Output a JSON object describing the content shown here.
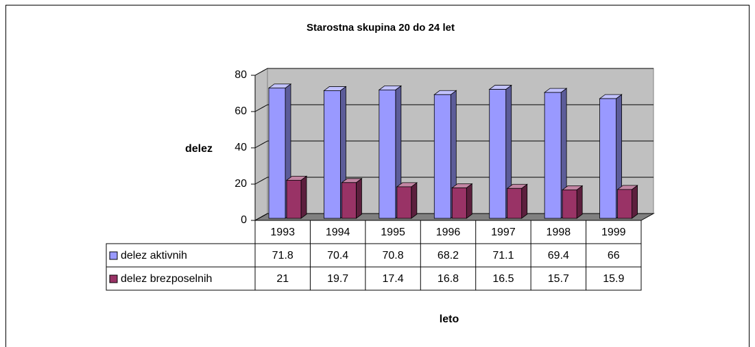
{
  "chart_data": {
    "type": "bar3d",
    "title": "Starostna skupina 20 do 24 let",
    "x_label": "leto",
    "y_label": "delez",
    "categories": [
      "1993",
      "1994",
      "1995",
      "1996",
      "1997",
      "1998",
      "1999"
    ],
    "series": [
      {
        "name": "delez aktivnih",
        "color": "#9999ff",
        "values": [
          71.8,
          70.4,
          70.8,
          68.2,
          71.1,
          69.4,
          66
        ]
      },
      {
        "name": "delez brezposelnih",
        "color": "#993366",
        "values": [
          21,
          19.7,
          17.4,
          16.8,
          16.5,
          15.7,
          15.9
        ]
      }
    ],
    "ylim": [
      0,
      80
    ],
    "yticks": [
      0,
      20,
      40,
      60,
      80
    ],
    "grid": true,
    "data_table": true
  }
}
